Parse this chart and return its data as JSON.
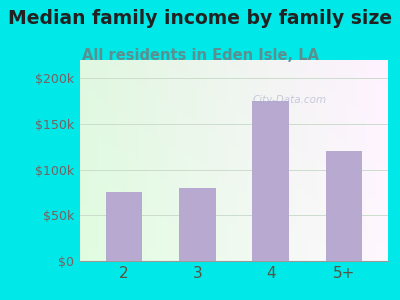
{
  "title": "Median family income by family size",
  "subtitle": "All residents in Eden Isle, LA",
  "categories": [
    "2",
    "3",
    "4",
    "5+"
  ],
  "values": [
    75000,
    80000,
    175000,
    120000
  ],
  "bar_color": "#b8a9d0",
  "title_fontsize": 13.5,
  "subtitle_fontsize": 10.5,
  "title_color": "#222222",
  "subtitle_color": "#5a9090",
  "tick_color": "#7a6060",
  "xtick_color": "#555544",
  "background_outer": "#00e8e8",
  "ylim": [
    0,
    220000
  ],
  "yticks": [
    0,
    50000,
    100000,
    150000,
    200000
  ],
  "ytick_labels": [
    "$0",
    "$50k",
    "$100k",
    "$150k",
    "$200k"
  ],
  "watermark": "City-Data.com",
  "watermark_color": "#aaaacc",
  "grid_color": "#ccddcc"
}
